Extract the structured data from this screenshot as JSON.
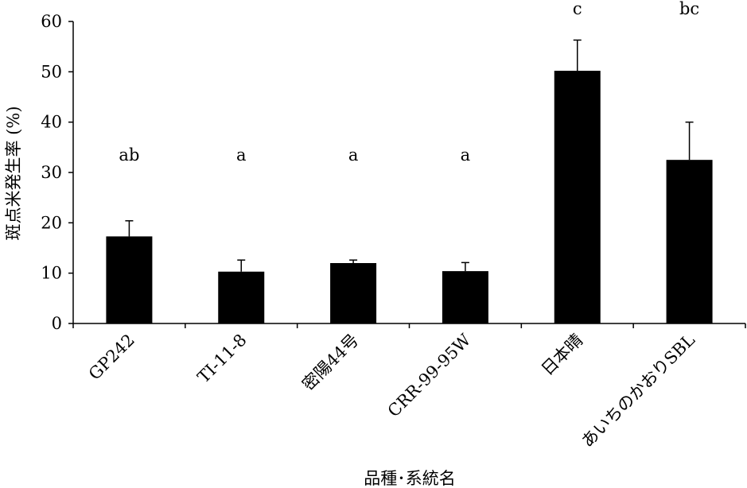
{
  "chart_data": {
    "type": "bar",
    "categories": [
      "GP242",
      "TI-11-8",
      "密陽44号",
      "CRR-99-95W",
      "日本晴",
      "あいちのかおりSBL"
    ],
    "values": [
      17.3,
      10.3,
      12.0,
      10.4,
      50.2,
      32.5
    ],
    "errors": [
      3.1,
      2.3,
      0.6,
      1.7,
      6.1,
      7.5
    ],
    "significance_labels": [
      "ab",
      "a",
      "a",
      "a",
      "c",
      "bc"
    ],
    "significance_y": [
      33.5,
      33.5,
      33.5,
      33.5,
      62.5,
      62.5
    ],
    "xlabel": "品種･系統名",
    "ylabel": "斑点米発生率 (%)",
    "ylim": [
      0,
      60
    ],
    "yticks": [
      0,
      10,
      20,
      30,
      40,
      50,
      60
    ],
    "bar_color": "#000000",
    "grid": false
  }
}
